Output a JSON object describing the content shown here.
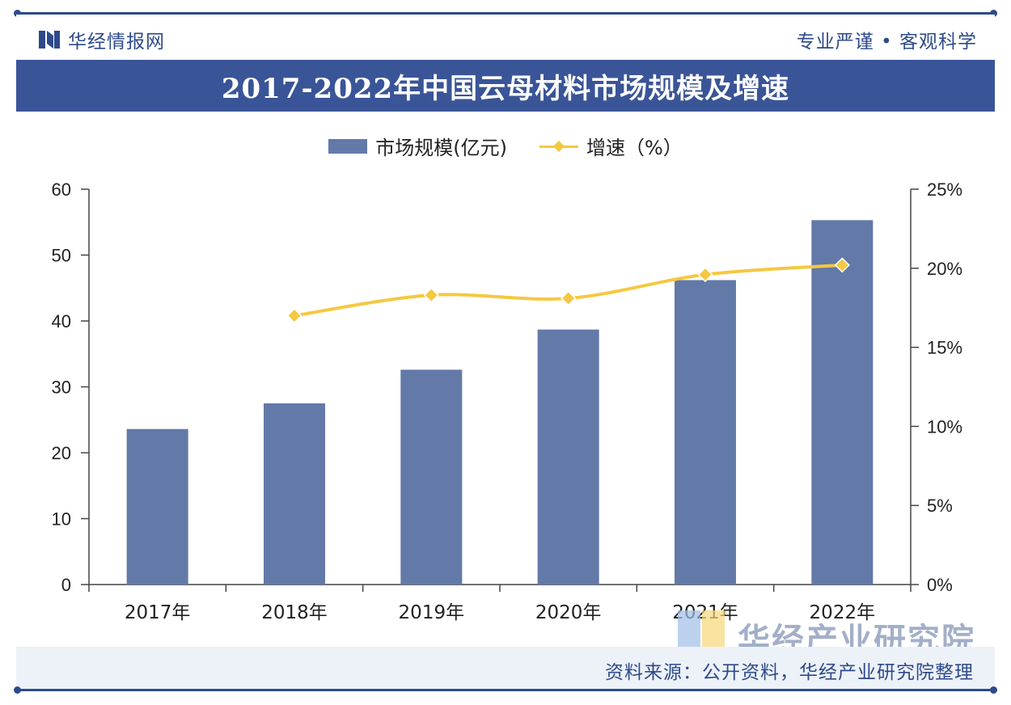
{
  "header": {
    "brand": "华经情报网",
    "slogan": "专业严谨 • 客观科学"
  },
  "title": "2017-2022年中国云母材料市场规模及增速",
  "legend": {
    "bar_label": "市场规模(亿元)",
    "line_label": "增速（%）"
  },
  "colors": {
    "bar": "#6379a8",
    "line": "#f5c842",
    "title_bg": "#3a5597",
    "brand": "#2d4a8a"
  },
  "chart_data": {
    "type": "bar",
    "categories": [
      "2017年",
      "2018年",
      "2019年",
      "2020年",
      "2021年",
      "2022年"
    ],
    "series": [
      {
        "name": "市场规模(亿元)",
        "type": "bar",
        "axis": "left",
        "values": [
          23.6,
          27.5,
          32.6,
          38.7,
          46.2,
          55.3
        ]
      },
      {
        "name": "增速（%）",
        "type": "line",
        "axis": "right",
        "values": [
          null,
          17.0,
          18.3,
          18.1,
          19.6,
          20.2
        ]
      }
    ],
    "left_axis": {
      "ylim": [
        0,
        60
      ],
      "ticks": [
        "0",
        "10",
        "20",
        "30",
        "40",
        "50",
        "60"
      ]
    },
    "right_axis": {
      "ylim": [
        0,
        25
      ],
      "ticks": [
        "0%",
        "5%",
        "10%",
        "15%",
        "20%",
        "25%"
      ]
    },
    "grid": false,
    "legend_position": "top-center"
  },
  "watermark": {
    "text": "华经产业研究院"
  },
  "source": "资料来源：公开资料，华经产业研究院整理"
}
